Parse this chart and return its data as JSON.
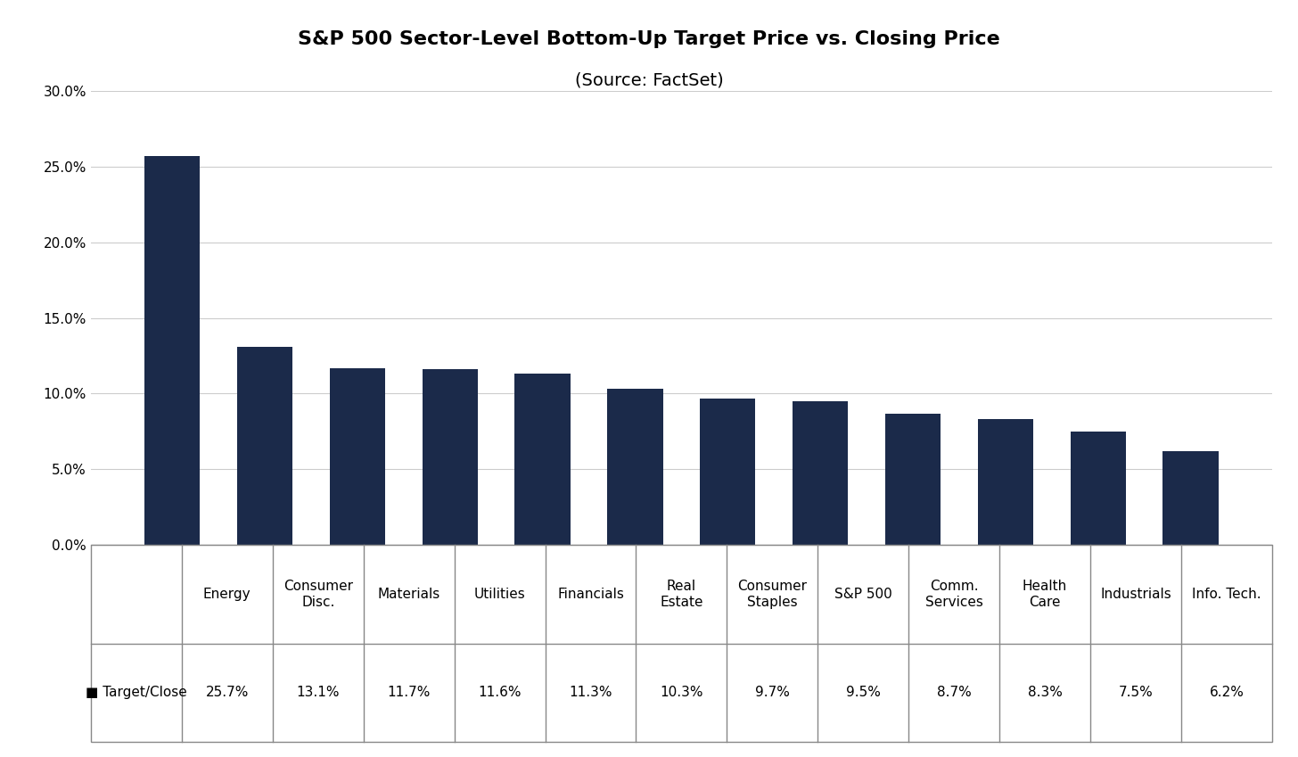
{
  "title_line1": "S&P 500 Sector-Level Bottom-Up Target Price vs. Closing Price",
  "title_line2": "(Source: FactSet)",
  "categories": [
    "Energy",
    "Consumer\nDisc.",
    "Materials",
    "Utilities",
    "Financials",
    "Real\nEstate",
    "Consumer\nStaples",
    "S&P 500",
    "Comm.\nServices",
    "Health\nCare",
    "Industrials",
    "Info. Tech."
  ],
  "values": [
    0.257,
    0.131,
    0.117,
    0.116,
    0.113,
    0.103,
    0.097,
    0.095,
    0.087,
    0.083,
    0.075,
    0.062
  ],
  "labels": [
    "25.7%",
    "13.1%",
    "11.7%",
    "11.6%",
    "11.3%",
    "10.3%",
    "9.7%",
    "9.5%",
    "8.7%",
    "8.3%",
    "7.5%",
    "6.2%"
  ],
  "bar_color": "#1B2A4A",
  "background_color": "#FFFFFF",
  "ylim": [
    0.0,
    0.3
  ],
  "yticks": [
    0.0,
    0.05,
    0.1,
    0.15,
    0.2,
    0.25,
    0.3
  ],
  "ytick_labels": [
    "0.0%",
    "5.0%",
    "10.0%",
    "15.0%",
    "20.0%",
    "25.0%",
    "30.0%"
  ],
  "legend_label": "■ Target/Close",
  "legend_color": "#1B2A4A",
  "title_fontsize": 16,
  "subtitle_fontsize": 14,
  "tick_fontsize": 11,
  "table_fontsize": 11,
  "grid_color": "#CCCCCC",
  "border_color": "#888888"
}
